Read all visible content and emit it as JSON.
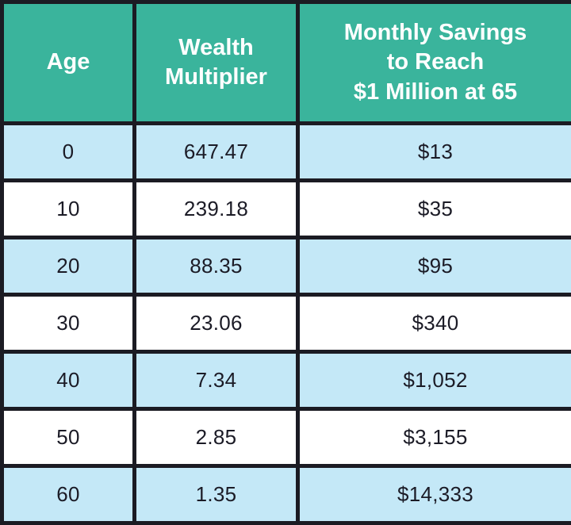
{
  "colors": {
    "header_bg": "#3ab49c",
    "header_text": "#ffffff",
    "row_alt_bg": "#c4e8f7",
    "row_bg": "#ffffff",
    "border": "#1b1b23",
    "body_text": "#1b1b26"
  },
  "chart_data": {
    "type": "table",
    "title": "",
    "columns": [
      "Age",
      "Wealth Multiplier",
      "Monthly Savings to Reach $1 Million at 65"
    ],
    "rows": [
      {
        "age": "0",
        "multiplier": "647.47",
        "savings": "$13"
      },
      {
        "age": "10",
        "multiplier": "239.18",
        "savings": "$35"
      },
      {
        "age": "20",
        "multiplier": "88.35",
        "savings": "$95"
      },
      {
        "age": "30",
        "multiplier": "23.06",
        "savings": "$340"
      },
      {
        "age": "40",
        "multiplier": "7.34",
        "savings": "$1,052"
      },
      {
        "age": "50",
        "multiplier": "2.85",
        "savings": "$3,155"
      },
      {
        "age": "60",
        "multiplier": "1.35",
        "savings": "$14,333"
      }
    ]
  },
  "table": {
    "headers": {
      "age": "Age",
      "multiplier": "Wealth\nMultiplier",
      "savings": "Monthly Savings\nto Reach\n$1 Million at 65"
    },
    "rows": [
      {
        "age": "0",
        "multiplier": "647.47",
        "savings": "$13"
      },
      {
        "age": "10",
        "multiplier": "239.18",
        "savings": "$35"
      },
      {
        "age": "20",
        "multiplier": "88.35",
        "savings": "$95"
      },
      {
        "age": "30",
        "multiplier": "23.06",
        "savings": "$340"
      },
      {
        "age": "40",
        "multiplier": "7.34",
        "savings": "$1,052"
      },
      {
        "age": "50",
        "multiplier": "2.85",
        "savings": "$3,155"
      },
      {
        "age": "60",
        "multiplier": "1.35",
        "savings": "$14,333"
      }
    ]
  }
}
